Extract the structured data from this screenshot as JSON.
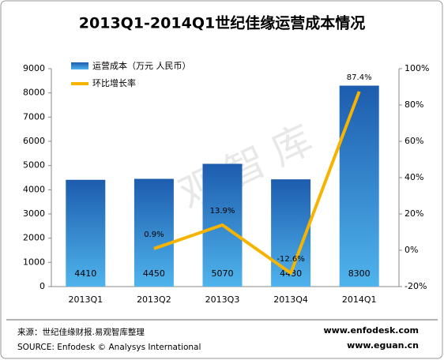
{
  "chart_data": {
    "type": "bar",
    "title": "2013Q1-2014Q1世纪佳缘运营成本情况",
    "categories": [
      "2013Q1",
      "2013Q2",
      "2013Q3",
      "2013Q4",
      "2014Q1"
    ],
    "series": [
      {
        "name": "运营成本（万元 人民币）",
        "color": "#2a78c8",
        "values": [
          4410,
          4450,
          5070,
          4430,
          8300
        ]
      },
      {
        "name": "环比增长率",
        "type": "line",
        "axis": "y2",
        "color": "#f6b400",
        "values": [
          null,
          0.9,
          13.9,
          -12.6,
          87.4
        ],
        "value_labels": [
          null,
          "0.9%",
          "13.9%",
          "-12.6%",
          "87.4%"
        ]
      }
    ],
    "ylim": [
      0,
      9000
    ],
    "yticks": [
      0,
      1000,
      2000,
      3000,
      4000,
      5000,
      6000,
      7000,
      8000,
      9000
    ],
    "y2lim": [
      -20,
      100
    ],
    "y2ticks": [
      {
        "value": -20,
        "label": "-20%"
      },
      {
        "value": 0,
        "label": "0%"
      },
      {
        "value": 20,
        "label": "20%"
      },
      {
        "value": 40,
        "label": "40%"
      },
      {
        "value": 60,
        "label": "60%"
      },
      {
        "value": 80,
        "label": "80%"
      },
      {
        "value": 100,
        "label": "100%"
      }
    ],
    "watermark": "易观智库",
    "source": "来源：世纪佳缘财报.易观智库整理",
    "source_en": "SOURCE: Enfodesk © Analysys International",
    "site1": "www.enfodesk.com",
    "site2": "www.eguan.cn"
  }
}
